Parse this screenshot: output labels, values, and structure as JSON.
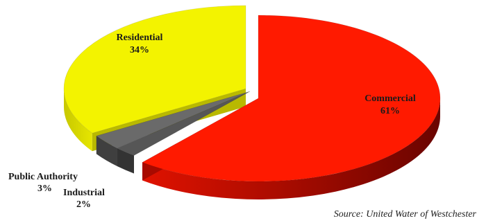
{
  "chart_data": {
    "type": "pie",
    "style": "3d-exploded",
    "slices": [
      {
        "label": "Commercial",
        "value": 61,
        "display": "61%",
        "color": "#ff1a00",
        "side_color": "#a80a00"
      },
      {
        "label": "Industrial",
        "value": 2,
        "display": "2%",
        "color": "#565656",
        "side_color": "#333333"
      },
      {
        "label": "Public Authority",
        "value": 3,
        "display": "3%",
        "color": "#6a6a6a",
        "side_color": "#3f3f3f"
      },
      {
        "label": "Residential",
        "value": 34,
        "display": "34%",
        "color": "#f3f300",
        "side_color": "#b9b900"
      }
    ],
    "source": "Source: United Water of Westchester"
  }
}
